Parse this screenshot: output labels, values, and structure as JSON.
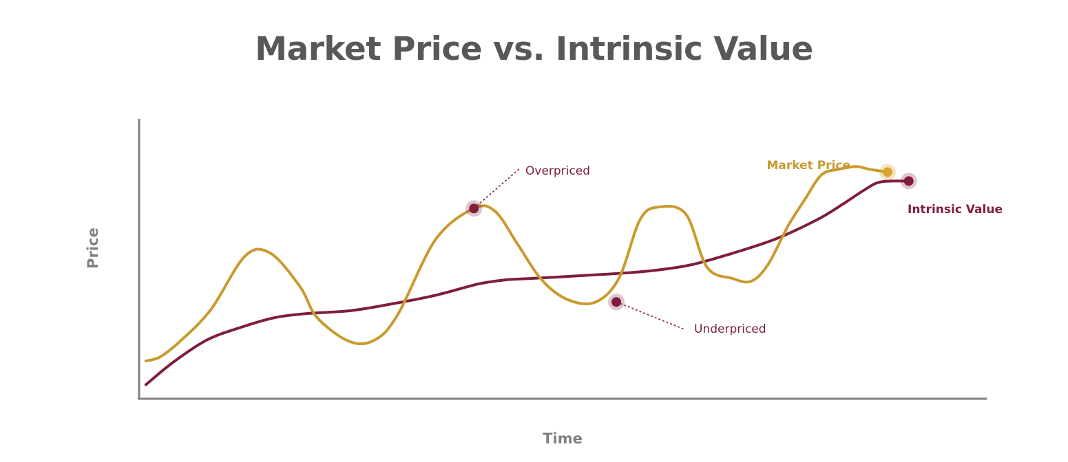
{
  "chart_data": {
    "type": "line",
    "title": "Market Price vs. Intrinsic Value",
    "xlabel": "Time",
    "ylabel": "Price",
    "xlim": [
      0,
      100
    ],
    "ylim": [
      0,
      100
    ],
    "grid": false,
    "colors": {
      "market": "#c99a2e",
      "intrinsic": "#7f1d3f",
      "axis": "#808080",
      "title": "#58585a"
    },
    "series": [
      {
        "key": "market",
        "name": "Market Price",
        "x": [
          0.8,
          2.5,
          5,
          8.5,
          12.5,
          15.5,
          19,
          21,
          24.8,
          27.8,
          30.5,
          35,
          39.5,
          42,
          44.7,
          47.5,
          50.5,
          53.8,
          56.6,
          59.1,
          61.3,
          64.5,
          67,
          70,
          72.2,
          74.2,
          76.6,
          78.5,
          80.5,
          82.5,
          84.6,
          86.2,
          88.3
        ],
        "y": [
          13.5,
          15,
          21,
          32,
          51,
          52,
          40,
          29,
          20.5,
          21,
          30,
          57,
          68,
          67,
          55,
          42.5,
          35.5,
          34.5,
          43,
          64,
          68.5,
          66,
          47,
          43,
          42,
          48,
          62,
          71,
          80,
          82,
          83,
          82,
          81
        ]
      },
      {
        "key": "intrinsic",
        "name": "Intrinsic Value",
        "x": [
          0.8,
          4,
          8,
          12,
          16,
          20,
          25,
          30,
          35,
          40,
          43,
          45,
          50,
          55,
          60,
          65,
          70,
          75,
          80,
          83,
          85.5,
          87.5,
          90.8
        ],
        "y": [
          5,
          13,
          21,
          25.5,
          29,
          30.5,
          31.5,
          34,
          37,
          41,
          42.4,
          42.8,
          43.6,
          44.5,
          45.6,
          47.8,
          52,
          57,
          64,
          69.5,
          74.5,
          77.5,
          77.8
        ]
      }
    ],
    "annotations": [
      {
        "key": "overpriced",
        "text": "Overpriced",
        "x": 39.5,
        "y": 68
      },
      {
        "key": "underpriced",
        "text": "Underpriced",
        "x": 56.3,
        "y": 34.6
      }
    ],
    "endpoints": {
      "market": {
        "x": 88.3,
        "y": 81
      },
      "intrinsic": {
        "x": 90.8,
        "y": 77.8
      }
    }
  }
}
